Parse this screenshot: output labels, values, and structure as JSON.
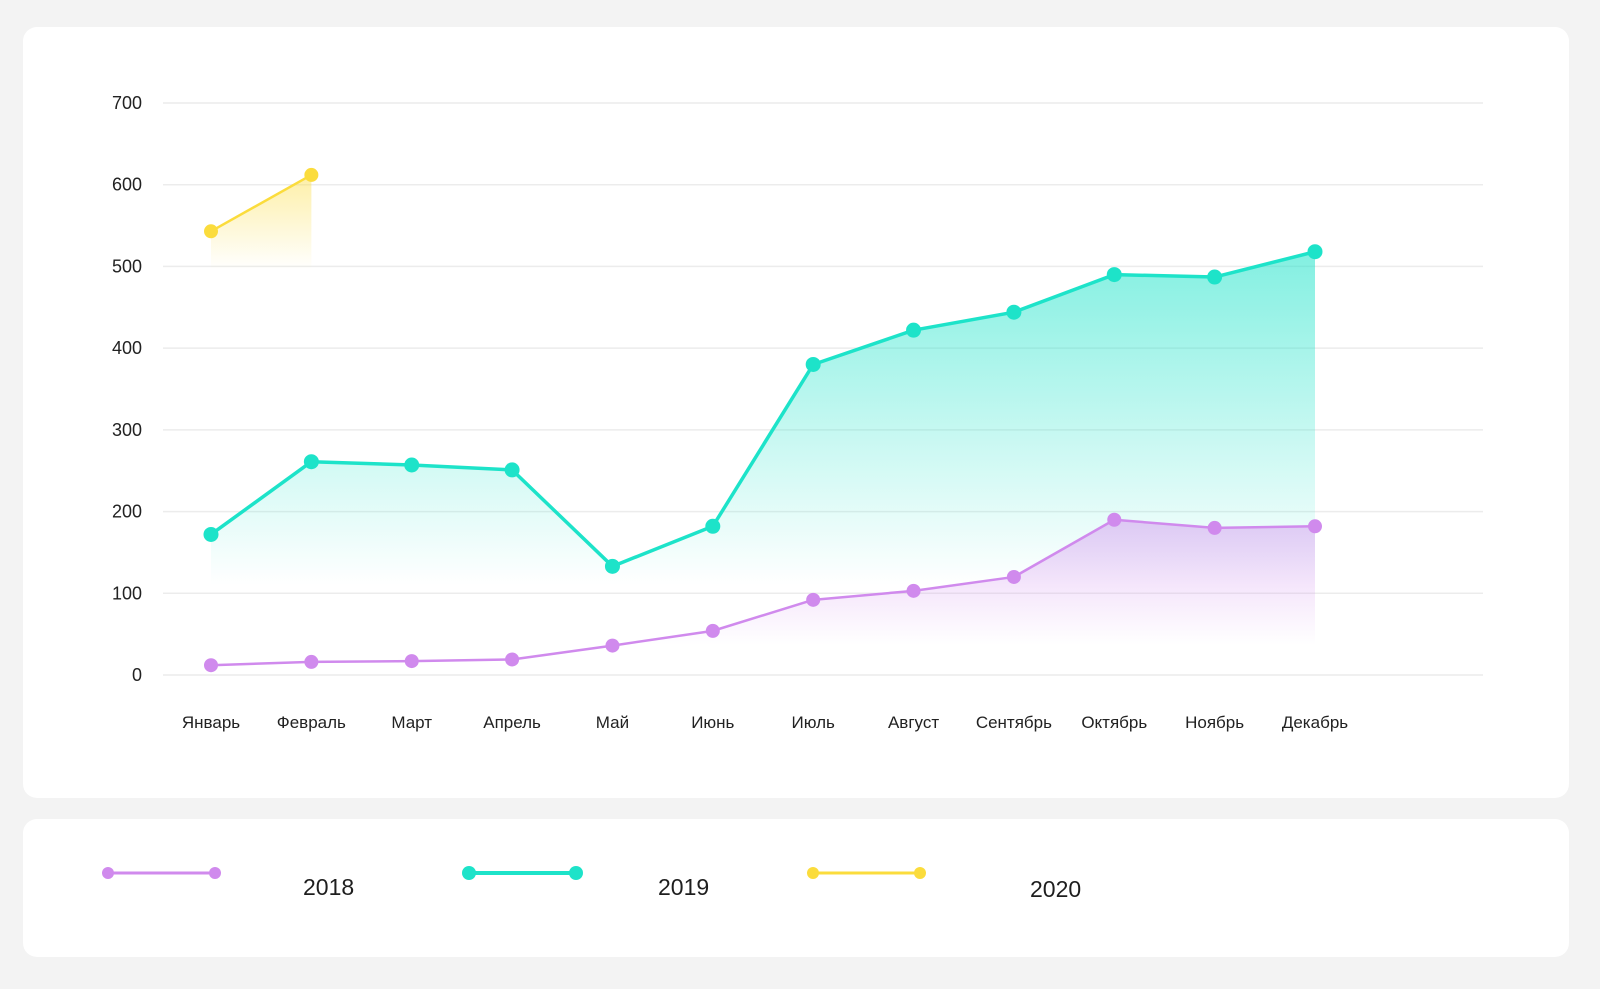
{
  "chart_data": {
    "type": "area",
    "title": "",
    "xlabel": "",
    "ylabel": "",
    "ylim": [
      0,
      700
    ],
    "yticks": [
      0,
      100,
      200,
      300,
      400,
      500,
      600,
      700
    ],
    "grid": true,
    "legend_position": "bottom",
    "categories": [
      "Январь",
      "Февраль",
      "Март",
      "Апрель",
      "Май",
      "Июнь",
      "Июль",
      "Август",
      "Сентябрь",
      "Октябрь",
      "Ноябрь",
      "Декабрь"
    ],
    "series": [
      {
        "name": "2018",
        "color": "#d08aed",
        "values": [
          12,
          16,
          17,
          19,
          36,
          54,
          92,
          103,
          120,
          190,
          180,
          182
        ]
      },
      {
        "name": "2019",
        "color": "#1de3c9",
        "values": [
          172,
          261,
          257,
          251,
          133,
          182,
          380,
          422,
          444,
          490,
          487,
          518
        ]
      },
      {
        "name": "2020",
        "color": "#fbdc3c",
        "values": [
          543,
          612,
          null,
          null,
          null,
          null,
          null,
          null,
          null,
          null,
          null,
          null
        ]
      }
    ]
  }
}
